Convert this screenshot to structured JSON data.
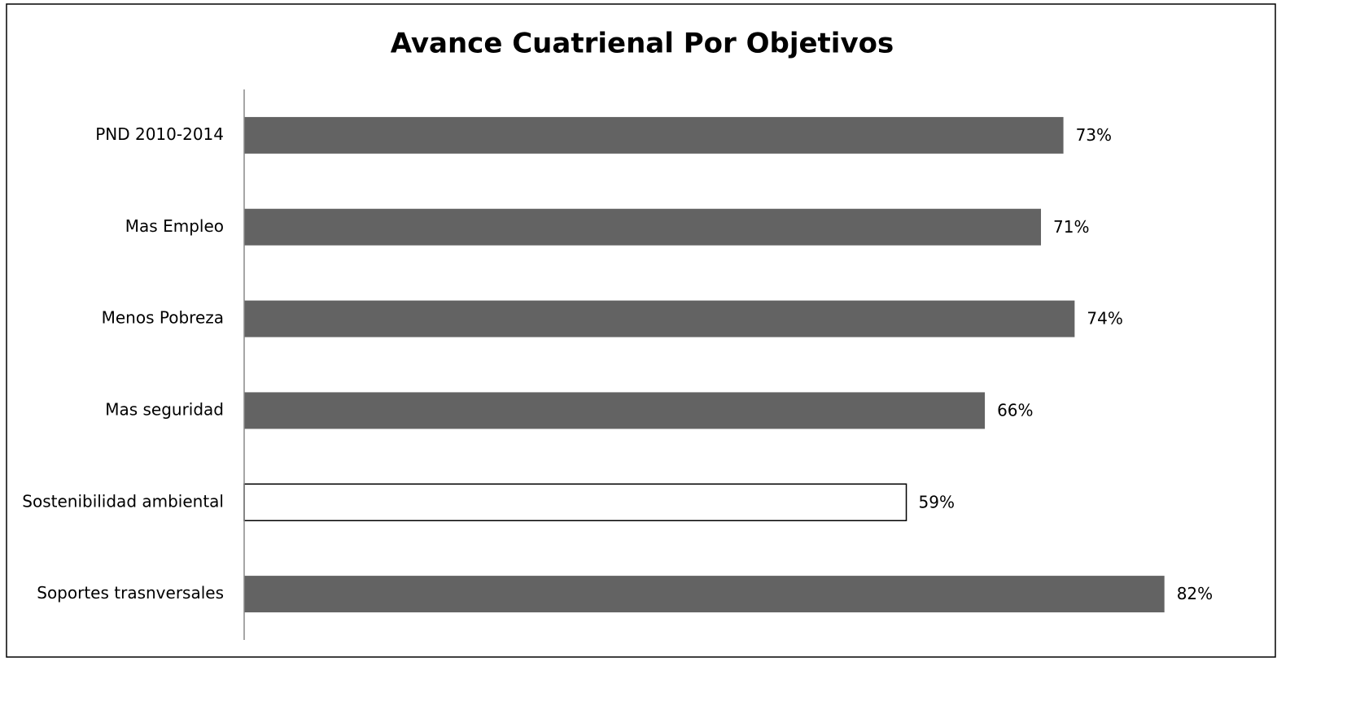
{
  "chart_data": {
    "type": "bar",
    "orientation": "horizontal",
    "title": "Avance Cuatrienal Por Objetivos",
    "categories": [
      "PND 2010-2014",
      "Mas Empleo",
      "Menos Pobreza",
      "Mas seguridad",
      "Sostenibilidad ambiental",
      "Soportes trasnversales"
    ],
    "values": [
      73,
      71,
      74,
      66,
      59,
      82
    ],
    "value_labels": [
      "73%",
      "71%",
      "74%",
      "66%",
      "59%",
      "82%"
    ],
    "colors": [
      "#636363",
      "#636363",
      "#636363",
      "#636363",
      "#ffffff",
      "#636363"
    ],
    "xlim": [
      0,
      90
    ]
  }
}
